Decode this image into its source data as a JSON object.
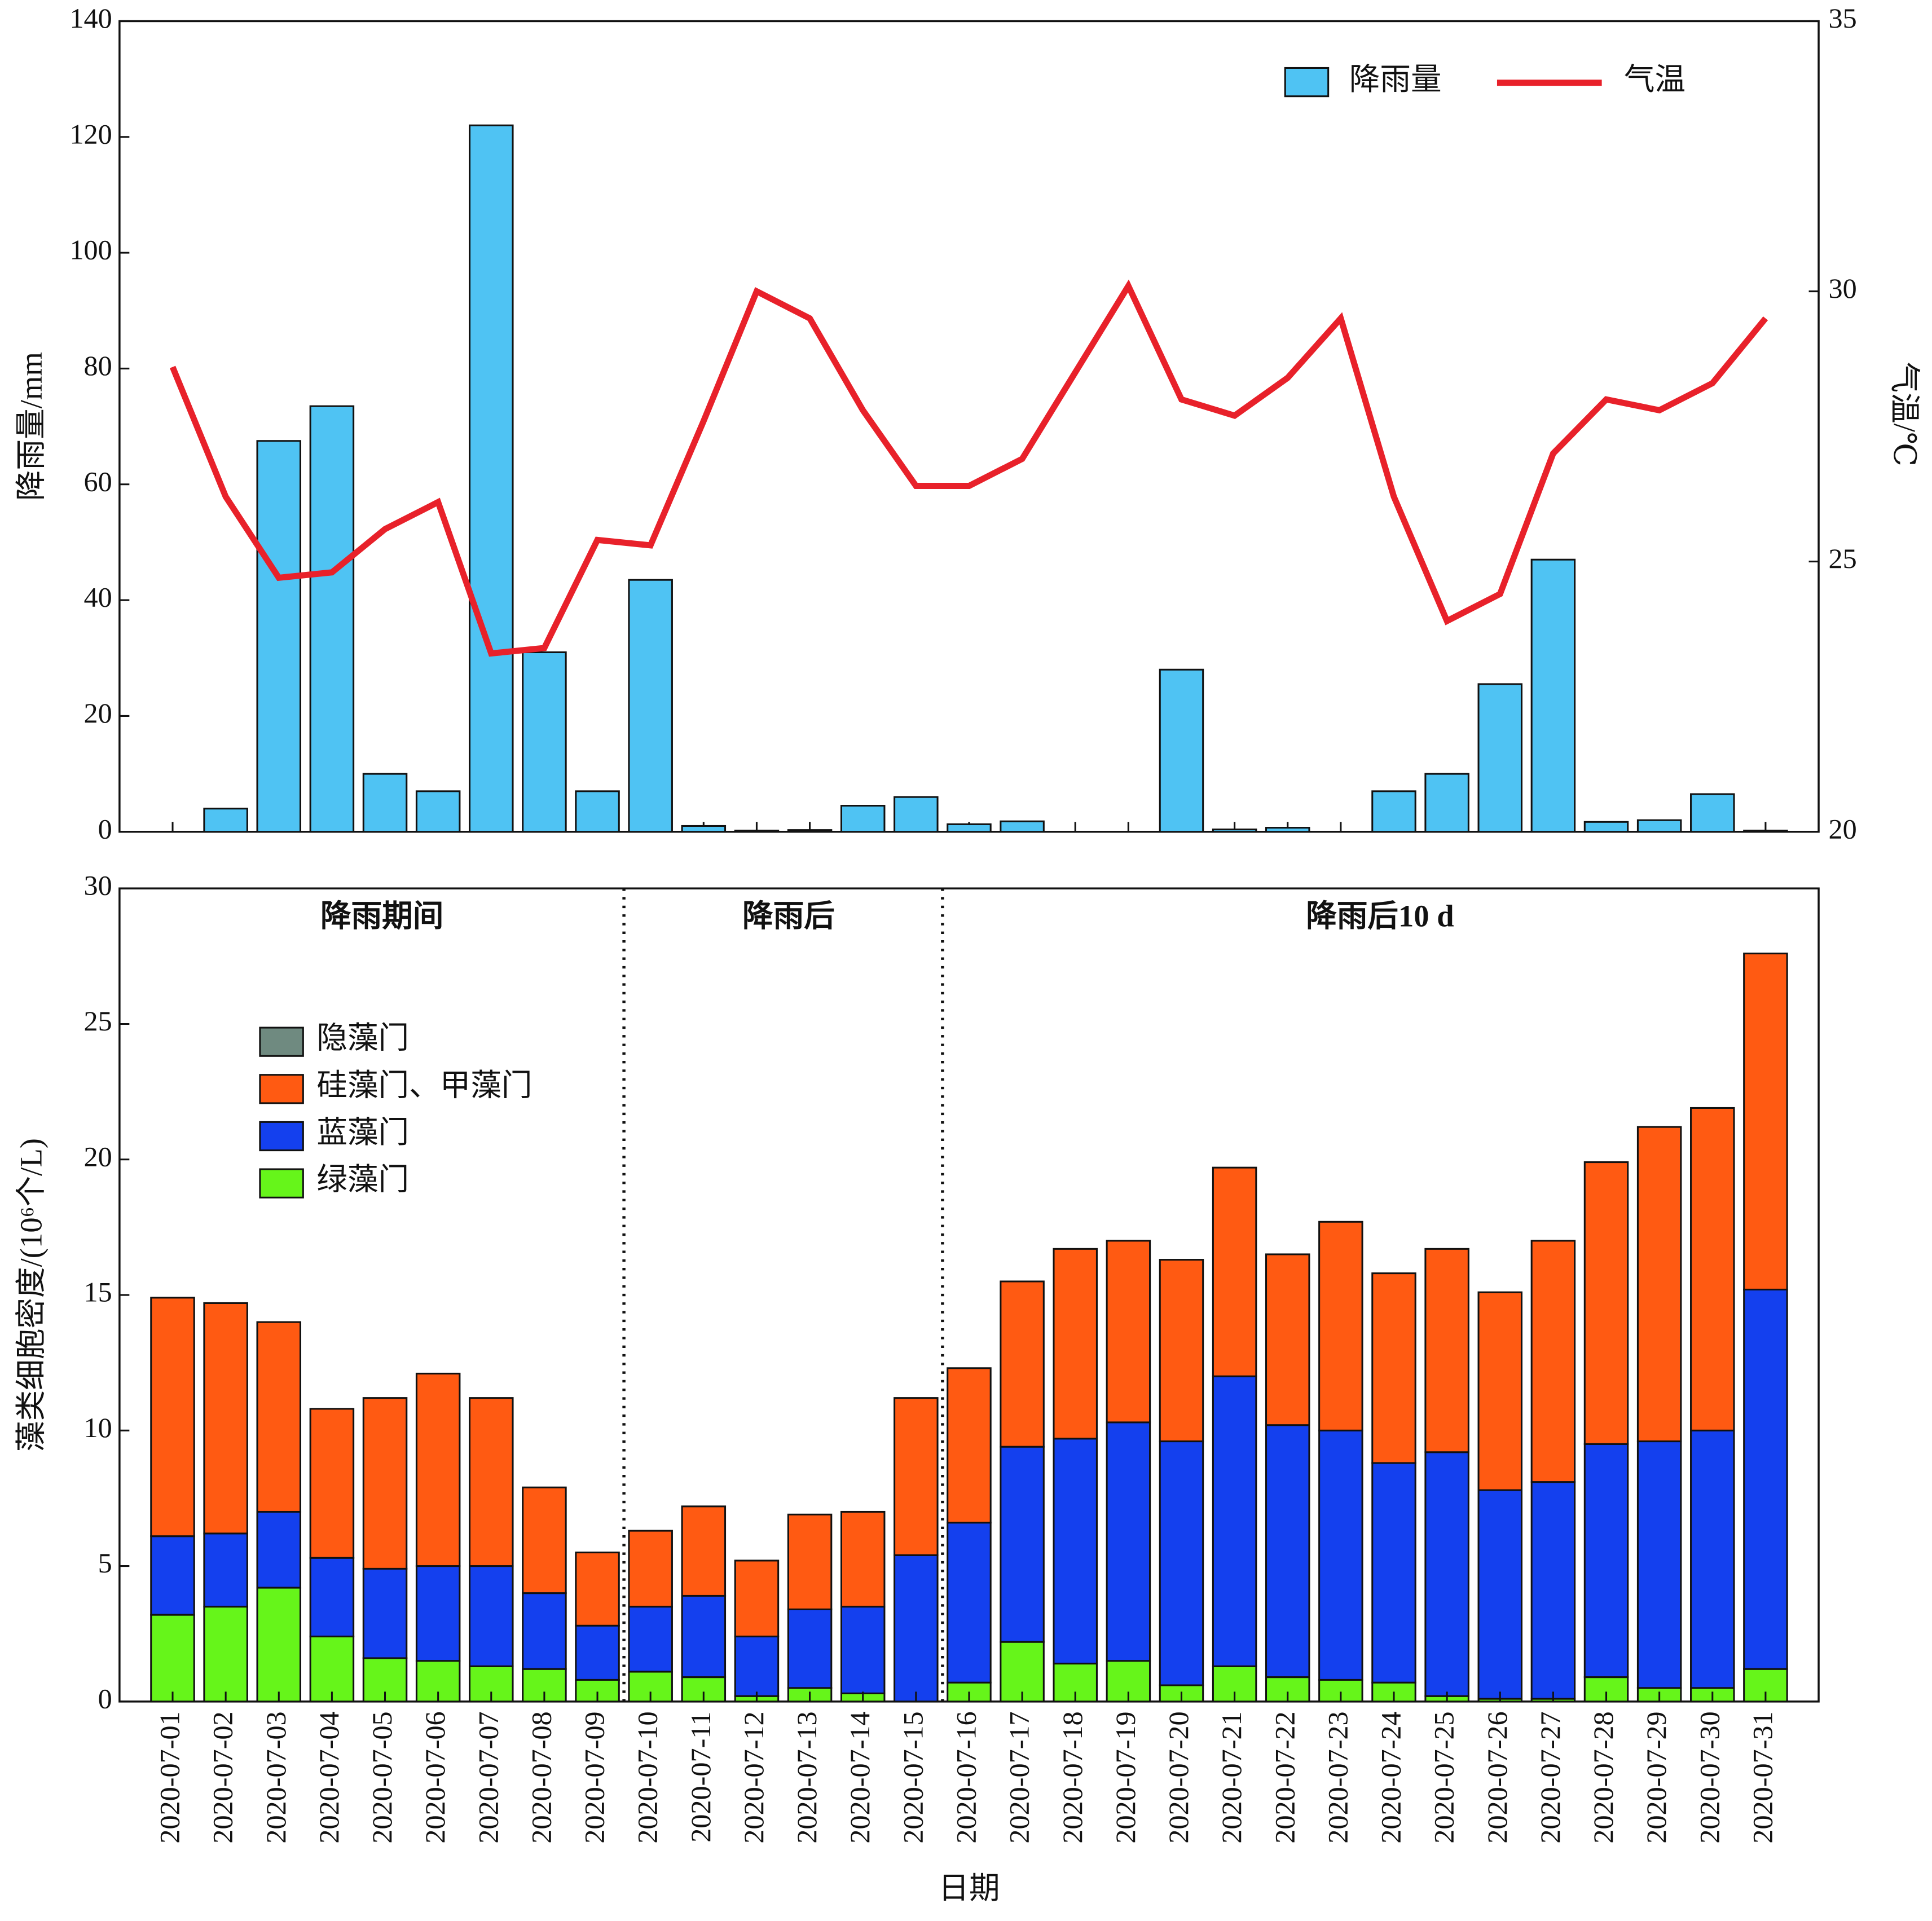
{
  "chart_data": [
    {
      "type": "combo",
      "ylabel": "降雨量/mm",
      "y2label": "气温/℃",
      "ylim": [
        0,
        140
      ],
      "yticks": [
        0,
        20,
        40,
        60,
        80,
        100,
        120,
        140
      ],
      "y2lim": [
        20,
        35
      ],
      "y2ticks": [
        20,
        25,
        30,
        35
      ],
      "legend": "upper right",
      "series": [
        {
          "name": "降雨量",
          "type": "bar",
          "color": "#4fc3f3",
          "values": [
            0,
            4,
            67.5,
            73.5,
            10,
            7,
            122,
            31,
            7,
            43.5,
            1,
            0.2,
            0.3,
            4.5,
            6,
            1.3,
            1.8,
            0,
            0,
            28,
            0.4,
            0.7,
            0,
            7,
            10,
            25.5,
            47,
            1.7,
            2,
            6.5,
            0.2
          ]
        },
        {
          "name": "气温",
          "type": "line",
          "axis": "y2",
          "color": "#e8212a",
          "values": [
            28.6,
            26.2,
            24.7,
            24.8,
            25.6,
            26.1,
            23.3,
            23.4,
            25.4,
            25.3,
            27.6,
            30.0,
            29.5,
            27.8,
            26.4,
            26.4,
            26.9,
            28.5,
            30.1,
            28.0,
            27.7,
            28.4,
            29.5,
            26.2,
            23.9,
            24.4,
            27.0,
            28.0,
            27.8,
            28.3,
            29.5
          ]
        }
      ]
    },
    {
      "type": "stacked_bar",
      "ylabel": "藻类细胞密度/(10⁶个/L)",
      "xlabel": "日期",
      "ylim": [
        0,
        30
      ],
      "yticks": [
        0,
        5,
        10,
        15,
        20,
        25,
        30
      ],
      "legend": "upper left",
      "annotations": [
        "降雨期间",
        "降雨后",
        "降雨后10 d"
      ],
      "categories": [
        "2020-07-01",
        "2020-07-02",
        "2020-07-03",
        "2020-07-04",
        "2020-07-05",
        "2020-07-06",
        "2020-07-07",
        "2020-07-08",
        "2020-07-09",
        "2020-07-10",
        "2020-07-11",
        "2020-07-12",
        "2020-07-13",
        "2020-07-14",
        "2020-07-15",
        "2020-07-16",
        "2020-07-17",
        "2020-07-18",
        "2020-07-19",
        "2020-07-20",
        "2020-07-21",
        "2020-07-22",
        "2020-07-23",
        "2020-07-24",
        "2020-07-25",
        "2020-07-26",
        "2020-07-27",
        "2020-07-28",
        "2020-07-29",
        "2020-07-30",
        "2020-07-31"
      ],
      "series": [
        {
          "name": "绿藻门",
          "color": "#66f51a",
          "values": [
            3.2,
            3.5,
            4.2,
            2.4,
            1.6,
            1.5,
            1.3,
            1.2,
            0.8,
            1.1,
            0.9,
            0.2,
            0.5,
            0.3,
            0,
            0.7,
            2.2,
            1.4,
            1.5,
            0.6,
            1.3,
            0.9,
            0.8,
            0.7,
            0.2,
            0.1,
            0.1,
            0.9,
            0.5,
            0.5,
            1.2
          ]
        },
        {
          "name": "蓝藻门",
          "color": "#1440ee",
          "values": [
            2.9,
            2.7,
            2.8,
            2.9,
            3.3,
            3.5,
            3.7,
            2.8,
            2.0,
            2.4,
            3.0,
            2.2,
            2.9,
            3.2,
            5.4,
            5.9,
            7.2,
            8.3,
            8.8,
            9.0,
            10.7,
            9.3,
            9.2,
            8.1,
            9.0,
            7.7,
            8.0,
            8.6,
            9.1,
            9.5,
            14.0
          ]
        },
        {
          "name": "硅藻门、甲藻门",
          "color": "#ff5a12",
          "values": [
            8.8,
            8.5,
            7.0,
            5.5,
            6.3,
            7.1,
            6.2,
            3.9,
            2.7,
            2.8,
            3.3,
            2.8,
            3.5,
            3.5,
            5.8,
            5.7,
            6.1,
            7.0,
            6.7,
            6.7,
            7.7,
            6.3,
            7.7,
            7.0,
            7.5,
            7.3,
            8.9,
            10.4,
            11.6,
            11.9,
            12.4
          ]
        },
        {
          "name": "隐藻门",
          "color": "#6f8a80",
          "values": [
            0,
            0,
            0,
            0,
            0,
            0,
            0,
            0,
            0,
            0,
            0,
            0,
            0,
            0,
            0,
            0,
            0,
            0,
            0,
            0,
            0,
            0,
            0,
            0,
            0,
            0,
            0,
            0,
            0,
            0,
            0
          ]
        }
      ]
    }
  ]
}
